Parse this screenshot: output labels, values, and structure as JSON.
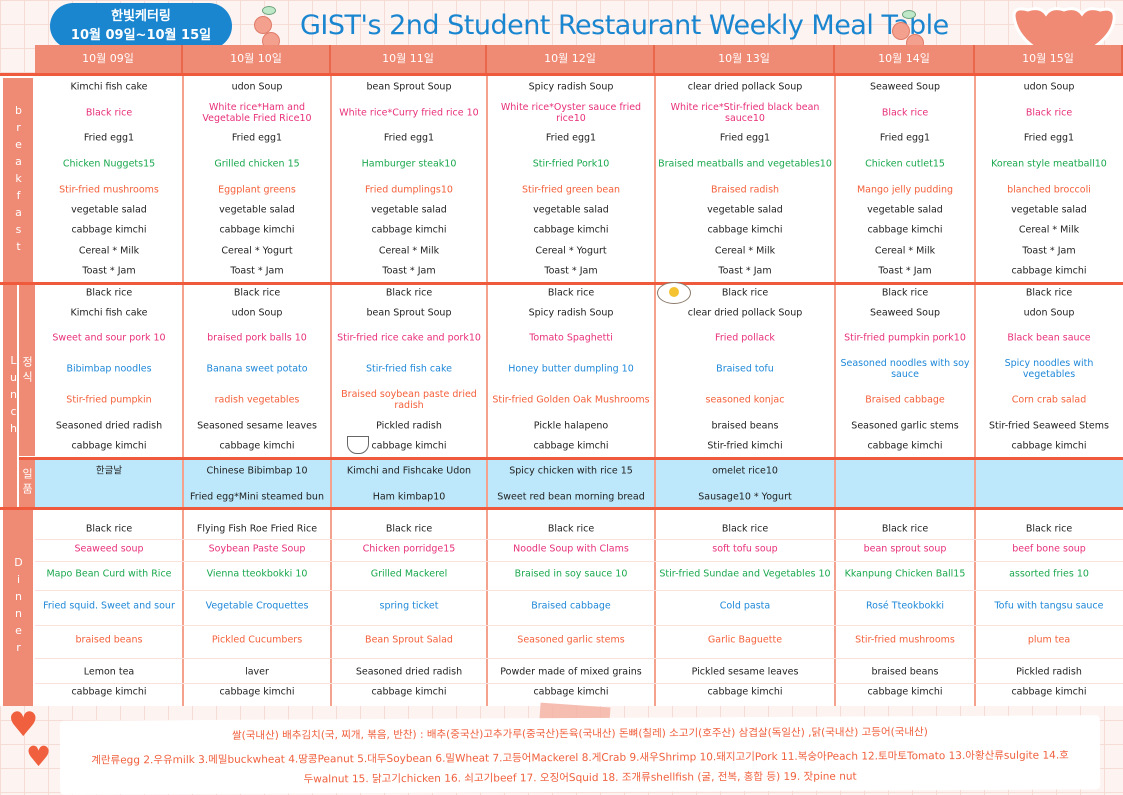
{
  "header": {
    "caterer": "한빛케터링",
    "period": "10월 09일~10월 15일",
    "title": "GIST's 2nd Student Restaurant Weekly Meal Table"
  },
  "days": [
    "10월 09일",
    "10월 10일",
    "10월 11일",
    "10월 12일",
    "10월 13일",
    "10월 14일",
    "10월 15일"
  ],
  "labels": {
    "breakfast": "breakfast",
    "lunch": "Lunch",
    "lunch_sub": "정식",
    "ilpum": "일품",
    "dinner": "Dinner"
  },
  "colors": {
    "black": "#222222",
    "pink": "#e8307a",
    "green": "#1aa84e",
    "blue": "#1e88d8",
    "orange": "#f4603a",
    "border": "#ef5a3c",
    "header": "#ef8a74",
    "ilpum_bg": "#bde8fb"
  },
  "breakfast": {
    "row_colors": [
      "black",
      "pink",
      "black",
      "green",
      "orange",
      "black",
      "black",
      "black",
      "black"
    ],
    "days": [
      [
        "Kimchi fish cake",
        "Black rice",
        "Fried egg1",
        "Chicken Nuggets15",
        "Stir-fried mushrooms",
        "vegetable salad",
        "cabbage kimchi",
        "Cereal * Milk",
        "Toast * Jam"
      ],
      [
        "udon Soup",
        "White rice*Ham and Vegetable Fried Rice10",
        "Fried egg1",
        "Grilled chicken 15",
        "Eggplant greens",
        "vegetable salad",
        "cabbage kimchi",
        "Cereal * Yogurt",
        "Toast * Jam"
      ],
      [
        "bean Sprout Soup",
        "White rice*Curry fried rice 10",
        "Fried egg1",
        "Hamburger steak10",
        "Fried dumplings10",
        "vegetable salad",
        "cabbage kimchi",
        "Cereal * Milk",
        "Toast * Jam"
      ],
      [
        "Spicy radish Soup",
        "White rice*Oyster sauce fried rice10",
        "Fried egg1",
        "Stir-fried Pork10",
        "Stir-fried green bean",
        "vegetable salad",
        "cabbage kimchi",
        "Cereal * Yogurt",
        "Toast * Jam"
      ],
      [
        "clear dried pollack Soup",
        "White rice*Stir-fried black bean sauce10",
        "Fried egg1",
        "Braised meatballs and vegetables10",
        "Braised radish",
        "vegetable salad",
        "cabbage kimchi",
        "Cereal * Milk",
        "Toast * Jam"
      ],
      [
        "Seaweed Soup",
        "Black rice",
        "Fried egg1",
        "Chicken cutlet15",
        "Mango jelly pudding",
        "vegetable salad",
        "cabbage kimchi",
        "Cereal * Milk",
        "Toast * Jam"
      ],
      [
        "udon Soup",
        "Black rice",
        "Fried egg1",
        "Korean style meatball10",
        "blanched broccoli",
        "vegetable salad",
        "Cereal * Milk",
        "Toast * Jam",
        "cabbage kimchi"
      ]
    ]
  },
  "lunch": {
    "row_colors": [
      "black",
      "black",
      "pink",
      "blue",
      "orange",
      "black",
      "black"
    ],
    "days": [
      [
        "Black rice",
        "Kimchi fish cake",
        "Sweet and sour pork 10",
        "Bibimbap noodles",
        "Stir-fried pumpkin",
        "Seasoned dried radish",
        "cabbage kimchi"
      ],
      [
        "Black rice",
        "udon Soup",
        "braised pork balls 10",
        "Banana sweet potato",
        "radish vegetables",
        "Seasoned sesame leaves",
        "cabbage kimchi"
      ],
      [
        "Black rice",
        "bean Sprout Soup",
        "Stir-fried rice cake and pork10",
        "Stir-fried fish cake",
        "Braised soybean paste dried radish",
        "Pickled radish",
        "cabbage kimchi"
      ],
      [
        "Black rice",
        "Spicy radish Soup",
        "Tomato Spaghetti",
        "Honey butter dumpling 10",
        "Stir-fried Golden Oak Mushrooms",
        "Pickle halapeno",
        "cabbage kimchi"
      ],
      [
        "Black rice",
        "clear dried pollack Soup",
        "Fried pollack",
        "Braised tofu",
        "seasoned konjac",
        "braised beans",
        "Stir-fried kimchi"
      ],
      [
        "Black rice",
        "Seaweed Soup",
        "Stir-fried pumpkin pork10",
        "Seasoned noodles with soy sauce",
        "Braised cabbage",
        "Seasoned garlic stems",
        "cabbage kimchi"
      ],
      [
        "Black rice",
        "udon Soup",
        "Black bean sauce",
        "Spicy noodles with vegetables",
        "Corn crab salad",
        "Stir-fried Seaweed Stems",
        "cabbage kimchi"
      ]
    ]
  },
  "ilpum": {
    "row_colors": [
      "black",
      "black"
    ],
    "days": [
      [
        "한글날",
        ""
      ],
      [
        "Chinese Bibimbap 10",
        "Fried egg*Mini steamed bun"
      ],
      [
        "Kimchi and Fishcake Udon",
        "Ham kimbap10"
      ],
      [
        "Spicy chicken with rice 15",
        "Sweet red bean morning bread"
      ],
      [
        "omelet rice10",
        "Sausage10 * Yogurt"
      ],
      [
        "",
        ""
      ],
      [
        "",
        ""
      ]
    ]
  },
  "dinner": {
    "row_colors": [
      "black",
      "pink",
      "green",
      "blue",
      "orange",
      "black",
      "black"
    ],
    "days": [
      [
        "Black rice",
        "Seaweed soup",
        "Mapo Bean Curd with Rice",
        "Fried squid. Sweet and sour",
        "braised beans",
        "Lemon tea",
        "cabbage kimchi"
      ],
      [
        "Flying Fish Roe Fried Rice",
        "Soybean Paste Soup",
        "Vienna tteokbokki 10",
        "Vegetable Croquettes",
        "Pickled Cucumbers",
        "laver",
        "cabbage kimchi"
      ],
      [
        "Black rice",
        "Chicken porridge15",
        "Grilled Mackerel",
        "spring ticket",
        "Bean Sprout Salad",
        "Seasoned dried radish",
        "cabbage kimchi"
      ],
      [
        "Black rice",
        "Noodle Soup with Clams",
        "Braised in soy sauce 10",
        "Braised cabbage",
        "Seasoned garlic stems",
        "Powder made of mixed grains",
        "cabbage kimchi"
      ],
      [
        "Black rice",
        "soft tofu soup",
        "Stir-fried Sundae and Vegetables 10",
        "Cold pasta",
        "Garlic Baguette",
        "Pickled sesame leaves",
        "cabbage kimchi"
      ],
      [
        "Black rice",
        "bean sprout soup",
        "Kkanpung Chicken Ball15",
        "Rosé Tteokbokki",
        "Stir-fried mushrooms",
        "braised beans",
        "cabbage kimchi"
      ],
      [
        "Black rice",
        "beef bone soup",
        "assorted fries 10",
        "Tofu with tangsu sauce",
        "plum tea",
        "Pickled radish",
        "cabbage kimchi"
      ]
    ]
  },
  "footer": {
    "origin": "쌀(국내산) 배추김치(국, 찌개, 볶음, 반찬) : 배추(중국산)고추가루(중국산)돈육(국내산) 돈뼈(칠레) 소고기(호주산) 삼겹살(독일산) ,닭(국내산) 고등어(국내산)",
    "allergy1": "계란류egg 2.우유milk 3.메밀buckwheat 4.땅콩Peanut 5.대두Soybean 6.밀Wheat 7.고등어Mackerel 8.게Crab 9.새우Shrimp 10.돼지고기Pork 11.복숭아Peach 12.토마토Tomato 13.아황산류sulgite 14.호",
    "allergy2": "두walnut 15. 닭고기chicken 16. 쇠고기beef 17. 오징어Squid 18. 조개류shellfish (굴, 전복, 홍합 등) 19. 잣pine nut"
  }
}
